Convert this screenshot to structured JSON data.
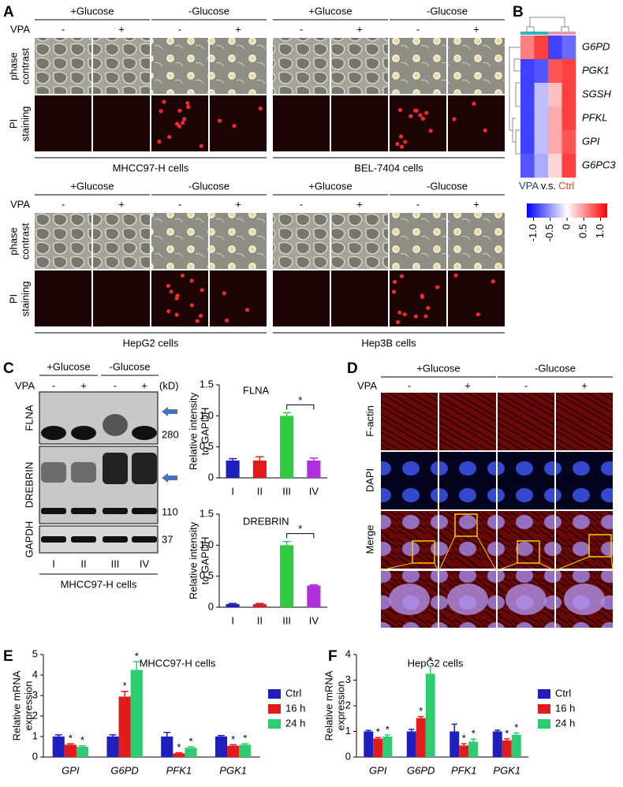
{
  "panel_labels": [
    "A",
    "B",
    "C",
    "D",
    "E",
    "F"
  ],
  "panel_a": {
    "groups": [
      [
        "MHCC97-H cells",
        "BEL-7404 cells"
      ],
      [
        "HepG2 cells",
        "Hep3B cells"
      ]
    ],
    "conditions": [
      "+Glucose",
      "-Glucose"
    ],
    "treatment": "VPA",
    "states": [
      "-",
      "+",
      "-",
      "+"
    ],
    "rows": [
      [
        "phase",
        "contrast"
      ],
      [
        "PI",
        "staining"
      ]
    ]
  },
  "panel_c_blot": {
    "conditions": [
      "+Glucose",
      "-Glucose"
    ],
    "treatment": "VPA",
    "states": [
      "-",
      "+",
      "-",
      "+"
    ],
    "unit": "(kD)",
    "proteins": [
      "FLNA",
      "DREBRIN",
      "GAPDH"
    ],
    "sizes": [
      280,
      110,
      37
    ],
    "lanes": [
      "I",
      "II",
      "III",
      "IV"
    ],
    "cells": "MHCC97-H cells"
  },
  "panel_d": {
    "conditions": [
      "+Glucose",
      "-Glucose"
    ],
    "treatment": "VPA",
    "states": [
      "-",
      "+",
      "-",
      "+"
    ],
    "rows": [
      "F-actin",
      "DAPI",
      "Merge"
    ]
  },
  "chart_data": [
    {
      "type": "heatmap",
      "rows": [
        "G6PD",
        "PGK1",
        "SGSH",
        "PFKL",
        "GPI",
        "G6PC3"
      ],
      "values": [
        [
          0.6,
          0.9,
          -0.9,
          -0.7
        ],
        [
          -0.9,
          -0.8,
          0.8,
          0.9
        ],
        [
          -0.9,
          -0.3,
          0.3,
          0.9
        ],
        [
          -0.9,
          -0.3,
          0.4,
          0.9
        ],
        [
          -0.9,
          -0.3,
          0.4,
          0.8
        ],
        [
          -0.8,
          -0.4,
          0.2,
          0.9
        ]
      ],
      "column_groups": [
        {
          "name": "VPA",
          "color": "#2bb6c4",
          "label_color": "#1f3c88",
          "columns": 2
        },
        {
          "name": "Ctrl",
          "color": "#e89aa6",
          "label_color": "#e0452f",
          "columns": 2
        }
      ],
      "group_separator": "v.s.",
      "colors": [
        "#0000ff",
        "#ffffff",
        "#ff0000"
      ],
      "clim": [
        -1.2,
        1.2
      ],
      "cticks": [
        {
          "value": -1,
          "label": "-1.0"
        },
        -0.5,
        0,
        0.5,
        {
          "value": 1,
          "label": "1.0"
        }
      ]
    },
    {
      "type": "bar",
      "title": "FLNA",
      "ylabel": [
        "Relative intensity",
        "to GAPDH"
      ],
      "categories": [
        "I",
        "II",
        "III",
        "IV"
      ],
      "values": [
        0.28,
        0.28,
        1.0,
        0.28
      ],
      "errors": [
        0.03,
        0.06,
        0.05,
        0.04
      ],
      "colors": [
        "#1f1fbf",
        "#e31a1c",
        "#2ecc40",
        "#b030e0"
      ],
      "ylim": [
        0,
        1.5
      ],
      "yticks": [
        0,
        0.5,
        {
          "value": 1,
          "label": "1.0"
        },
        {
          "value": 1.5,
          "label": "1.5"
        }
      ],
      "significance_label": "*",
      "significance_style": "bracket",
      "significant": [
        false,
        false,
        false,
        true
      ]
    },
    {
      "type": "bar",
      "title": "DREBRIN",
      "ylabel": [
        "Relative intensity",
        "to GAPDH"
      ],
      "categories": [
        "I",
        "II",
        "III",
        "IV"
      ],
      "values": [
        0.05,
        0.05,
        1.0,
        0.35
      ],
      "errors": [
        0.01,
        0.01,
        0.06,
        0.01
      ],
      "colors": [
        "#1f1fbf",
        "#e31a1c",
        "#2ecc40",
        "#b030e0"
      ],
      "ylim": [
        0,
        1.5
      ],
      "yticks": [
        0,
        0.5,
        {
          "value": 1,
          "label": "1.0"
        },
        {
          "value": 1.5,
          "label": "1.5"
        }
      ],
      "significance_label": "*",
      "significance_style": "bracket",
      "significant": [
        false,
        false,
        false,
        true
      ]
    },
    {
      "type": "bar",
      "title": "MHCC97-H cells",
      "ylabel": [
        "Relative mRNA",
        "expression"
      ],
      "categories": [
        "GPI",
        "G6PD",
        "PFK1",
        "PGK1"
      ],
      "category_style": "italic",
      "series": [
        {
          "name": "Ctrl",
          "color": "#1f1fbf",
          "values": [
            1.0,
            1.0,
            1.0,
            1.0
          ],
          "errors": [
            0.08,
            0.08,
            0.2,
            0.05
          ],
          "significant": [
            false,
            false,
            false,
            false
          ]
        },
        {
          "name": "16 h",
          "color": "#e31a1c",
          "values": [
            0.6,
            2.95,
            0.18,
            0.55
          ],
          "errors": [
            0.05,
            0.25,
            0.03,
            0.05
          ],
          "significant": [
            true,
            true,
            true,
            true
          ]
        },
        {
          "name": "24 h",
          "color": "#2ecc71",
          "values": [
            0.5,
            4.25,
            0.45,
            0.6
          ],
          "errors": [
            0.05,
            0.4,
            0.05,
            0.05
          ],
          "significant": [
            true,
            true,
            true,
            true
          ]
        }
      ],
      "ylim": [
        0,
        5
      ],
      "yticks": [
        0,
        1,
        2,
        3,
        4,
        5
      ],
      "significance_label": "*",
      "significance_style": "star"
    },
    {
      "type": "bar",
      "title": "HepG2 cells",
      "ylabel": [
        "Relative mRNA",
        "expression"
      ],
      "categories": [
        "GPI",
        "G6PD",
        "PFK1",
        "PGK1"
      ],
      "category_style": "italic",
      "series": [
        {
          "name": "Ctrl",
          "color": "#1f1fbf",
          "values": [
            1.0,
            1.0,
            1.0,
            1.0
          ],
          "errors": [
            0.04,
            0.08,
            0.28,
            0.05
          ],
          "significant": [
            false,
            false,
            false,
            false
          ]
        },
        {
          "name": "16 h",
          "color": "#e31a1c",
          "values": [
            0.72,
            1.52,
            0.45,
            0.65
          ],
          "errors": [
            0.04,
            0.06,
            0.07,
            0.06
          ],
          "significant": [
            true,
            true,
            true,
            true
          ]
        },
        {
          "name": "24 h",
          "color": "#2ecc71",
          "values": [
            0.8,
            3.25,
            0.6,
            0.87
          ],
          "errors": [
            0.06,
            0.3,
            0.1,
            0.07
          ],
          "significant": [
            true,
            true,
            true,
            true
          ]
        }
      ],
      "ylim": [
        0,
        4
      ],
      "yticks": [
        0,
        1,
        2,
        3,
        4
      ],
      "significance_label": "*",
      "significance_style": "star"
    }
  ]
}
